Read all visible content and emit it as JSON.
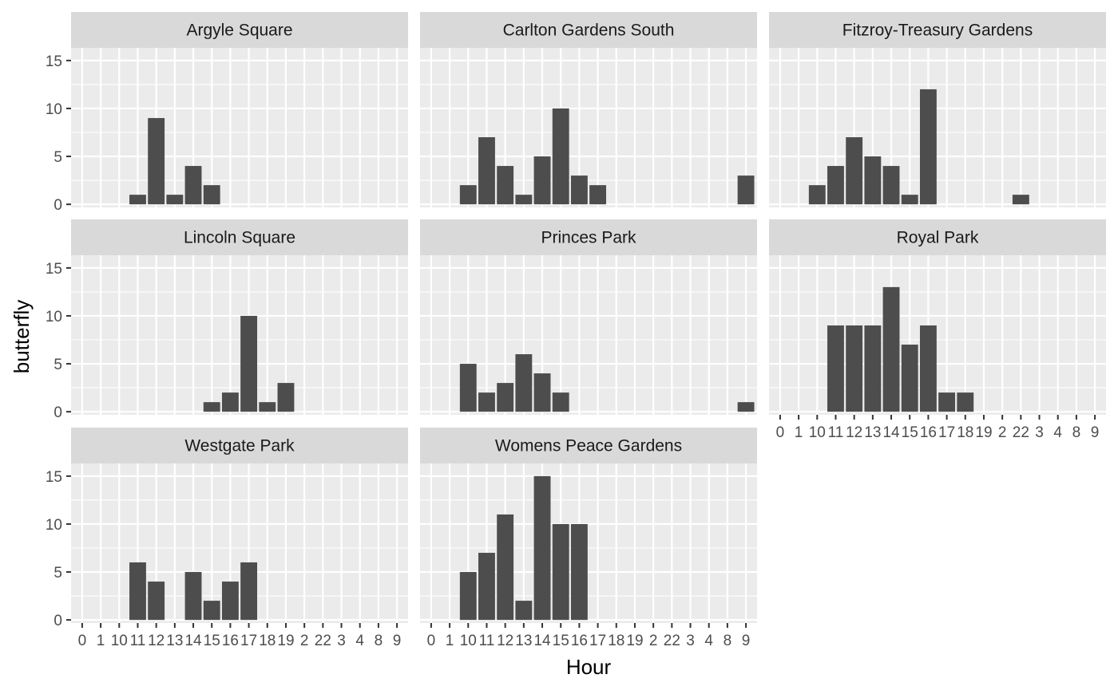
{
  "chart_data": {
    "type": "bar",
    "facet": "wrap",
    "xlabel": "Hour",
    "ylabel": "butterfly",
    "ylim": [
      0,
      16
    ],
    "y_ticks": [
      0,
      5,
      10,
      15
    ],
    "categories": [
      "0",
      "1",
      "10",
      "11",
      "12",
      "13",
      "14",
      "15",
      "16",
      "17",
      "18",
      "19",
      "2",
      "22",
      "3",
      "4",
      "8",
      "9"
    ],
    "colors": {
      "bar": "#4d4d4d",
      "panel": "#ebebeb",
      "strip": "#d9d9d9",
      "grid": "#ffffff"
    },
    "panels": [
      {
        "title": "Argyle Square",
        "values": {
          "11": 1,
          "12": 9,
          "13": 1,
          "14": 4,
          "15": 2
        }
      },
      {
        "title": "Carlton Gardens South",
        "values": {
          "10": 2,
          "11": 7,
          "12": 4,
          "13": 1,
          "14": 5,
          "15": 10,
          "16": 3,
          "17": 2,
          "9": 3
        }
      },
      {
        "title": "Fitzroy-Treasury Gardens",
        "values": {
          "10": 2,
          "11": 4,
          "12": 7,
          "13": 5,
          "14": 4,
          "15": 1,
          "16": 12,
          "22": 1
        }
      },
      {
        "title": "Lincoln Square",
        "values": {
          "15": 1,
          "16": 2,
          "17": 10,
          "18": 1,
          "19": 3
        }
      },
      {
        "title": "Princes Park",
        "values": {
          "10": 5,
          "11": 2,
          "12": 3,
          "13": 6,
          "14": 4,
          "15": 2,
          "9": 1
        }
      },
      {
        "title": "Royal Park",
        "values": {
          "11": 9,
          "12": 9,
          "13": 9,
          "14": 13,
          "15": 7,
          "16": 9,
          "17": 2,
          "18": 2
        }
      },
      {
        "title": "Westgate Park",
        "values": {
          "11": 6,
          "12": 4,
          "14": 5,
          "15": 2,
          "16": 4,
          "17": 6
        }
      },
      {
        "title": "Womens Peace Gardens",
        "values": {
          "10": 5,
          "11": 7,
          "12": 11,
          "13": 2,
          "14": 15,
          "15": 10,
          "16": 10
        }
      }
    ]
  }
}
